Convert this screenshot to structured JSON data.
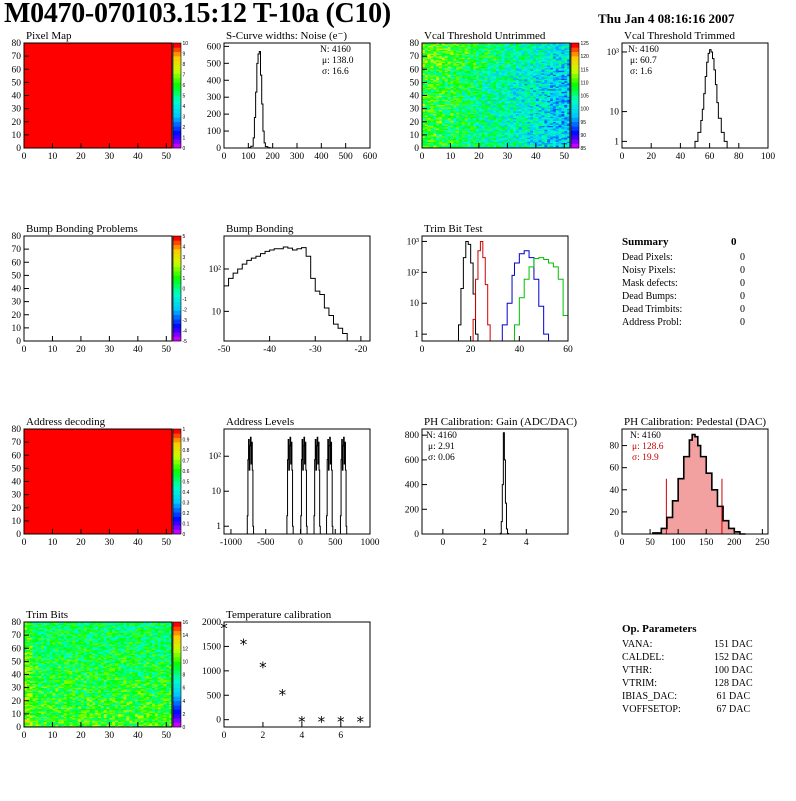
{
  "header": {
    "title": "M0470-070103.15:12 T-10a (C10)",
    "date": "Thu Jan  4 08:16:16 2007"
  },
  "colors": {
    "map_fill": "#ff0000",
    "hist_line": "#000000",
    "trim_black": "#000000",
    "trim_red": "#d00000",
    "trim_blue": "#0000cc",
    "trim_green": "#00c000",
    "pedestal_fill": "#f2a0a0",
    "pedestal_stat": "#cc0000"
  },
  "chart_data": [
    {
      "id": "pixel-map",
      "type": "heatmap",
      "title": "Pixel Map",
      "xlim": [
        0,
        52
      ],
      "ylim": [
        0,
        80
      ],
      "xticks": [
        "0",
        "10",
        "20",
        "30",
        "40",
        "50"
      ],
      "yticks": [
        "0",
        "10",
        "20",
        "30",
        "40",
        "50",
        "60",
        "70",
        "80"
      ],
      "fill": "uniform red",
      "zlim": [
        0,
        10
      ],
      "zticks": [
        "0",
        "1",
        "2",
        "3",
        "4",
        "5",
        "6",
        "7",
        "8",
        "9",
        "10"
      ]
    },
    {
      "id": "scurve-widths",
      "type": "histogram",
      "title": "S-Curve widths: Noise (e⁻)",
      "xlim": [
        0,
        600
      ],
      "ylim": [
        0,
        620
      ],
      "xticks": [
        "0",
        "100",
        "200",
        "300",
        "400",
        "500",
        "600"
      ],
      "yticks": [
        "0",
        "100",
        "200",
        "300",
        "400",
        "500",
        "600"
      ],
      "x": [
        100,
        110,
        120,
        125,
        130,
        135,
        140,
        145,
        150,
        155,
        160,
        165,
        170,
        180,
        190
      ],
      "y": [
        2,
        10,
        60,
        180,
        330,
        500,
        555,
        570,
        430,
        260,
        100,
        30,
        8,
        2,
        0
      ],
      "stats": {
        "N": "N: 4160",
        "mean": "μ: 138.0",
        "sigma": "σ: 16.6"
      }
    },
    {
      "id": "vcal-untrimmed",
      "type": "heatmap",
      "title": "Vcal Threshold Untrimmed",
      "xlim": [
        0,
        52
      ],
      "ylim": [
        0,
        80
      ],
      "xticks": [
        "0",
        "10",
        "20",
        "30",
        "40",
        "50"
      ],
      "yticks": [
        "0",
        "10",
        "20",
        "30",
        "40",
        "50",
        "60",
        "70",
        "80"
      ],
      "zlim": [
        80,
        128
      ],
      "zticks": [
        "85",
        "90",
        "95",
        "100",
        "105",
        "110",
        "115",
        "120",
        "125"
      ]
    },
    {
      "id": "vcal-trimmed",
      "type": "histogram",
      "title": "Vcal Threshold Trimmed",
      "logy": true,
      "xlim": [
        0,
        100
      ],
      "xticks": [
        "0",
        "20",
        "40",
        "60",
        "80",
        "100"
      ],
      "yticks": [
        "1",
        "10",
        "10³"
      ],
      "x": [
        50,
        52,
        54,
        55,
        56,
        57,
        58,
        59,
        60,
        61,
        62,
        63,
        64,
        65,
        66,
        68,
        70
      ],
      "y": [
        1,
        2,
        5,
        12,
        40,
        150,
        450,
        900,
        1200,
        1000,
        600,
        250,
        80,
        20,
        6,
        2,
        1
      ],
      "stats": {
        "N": "N: 4160",
        "mean": "μ: 60.7",
        "sigma": "σ:  1.6"
      }
    },
    {
      "id": "bump-bonding-problems",
      "type": "heatmap",
      "title": "Bump Bonding Problems",
      "xlim": [
        0,
        52
      ],
      "ylim": [
        0,
        80
      ],
      "xticks": [
        "0",
        "10",
        "20",
        "30",
        "40",
        "50"
      ],
      "yticks": [
        "0",
        "10",
        "20",
        "30",
        "40",
        "50",
        "60",
        "70",
        "80"
      ],
      "fill": "empty",
      "zlim": [
        -5,
        5
      ],
      "zticks": [
        "-5",
        "-4",
        "-3",
        "-2",
        "-1",
        "0",
        "1",
        "2",
        "3",
        "4",
        "5"
      ]
    },
    {
      "id": "bump-bonding",
      "type": "histogram",
      "title": "Bump Bonding",
      "logy": true,
      "xlim": [
        -50,
        -18
      ],
      "xticks": [
        "-50",
        "-40",
        "-30",
        "-20"
      ],
      "yticks": [
        "10",
        "10²"
      ],
      "x": [
        -50,
        -49,
        -48,
        -47,
        -46,
        -45,
        -44,
        -43,
        -42,
        -41,
        -40,
        -39,
        -38,
        -37,
        -36,
        -35,
        -34,
        -33,
        -32,
        -31,
        -30,
        -29,
        -28,
        -27,
        -26,
        -25,
        -24,
        -23
      ],
      "y": [
        40,
        60,
        80,
        100,
        130,
        160,
        180,
        200,
        230,
        260,
        280,
        300,
        300,
        330,
        310,
        280,
        300,
        320,
        200,
        60,
        30,
        25,
        12,
        8,
        5,
        4,
        3,
        2
      ],
      "stats": {}
    },
    {
      "id": "trim-bit-test",
      "type": "histogram",
      "title": "Trim Bit Test",
      "logy": true,
      "xlim": [
        0,
        60
      ],
      "xticks": [
        "0",
        "20",
        "40",
        "60"
      ],
      "yticks": [
        "1",
        "10",
        "10²",
        "10³"
      ],
      "series": [
        {
          "color": "black",
          "x": [
            15,
            16,
            17,
            18,
            19,
            20,
            21,
            22
          ],
          "y": [
            2,
            30,
            300,
            1000,
            800,
            200,
            20,
            1
          ]
        },
        {
          "color": "red",
          "x": [
            21,
            22,
            23,
            24,
            25,
            26,
            27
          ],
          "y": [
            3,
            60,
            500,
            1000,
            300,
            40,
            2
          ]
        },
        {
          "color": "blue",
          "x": [
            33,
            35,
            37,
            38,
            40,
            42,
            44,
            46,
            48,
            50
          ],
          "y": [
            2,
            10,
            80,
            200,
            400,
            500,
            300,
            60,
            8,
            1
          ]
        },
        {
          "color": "green",
          "x": [
            38,
            40,
            42,
            44,
            46,
            48,
            50,
            52,
            54,
            56,
            58
          ],
          "y": [
            2,
            15,
            60,
            150,
            280,
            300,
            260,
            200,
            150,
            60,
            4
          ]
        }
      ]
    },
    {
      "id": "address-decoding",
      "type": "heatmap",
      "title": "Address decoding",
      "xlim": [
        0,
        52
      ],
      "ylim": [
        0,
        80
      ],
      "xticks": [
        "0",
        "10",
        "20",
        "30",
        "40",
        "50"
      ],
      "yticks": [
        "0",
        "10",
        "20",
        "30",
        "40",
        "50",
        "60",
        "70",
        "80"
      ],
      "fill": "uniform red",
      "zlim": [
        0,
        1
      ],
      "zticks": [
        "0",
        "0.1",
        "0.2",
        "0.3",
        "0.4",
        "0.5",
        "0.6",
        "0.7",
        "0.8",
        "0.9",
        "1"
      ]
    },
    {
      "id": "address-levels",
      "type": "histogram",
      "title": "Address Levels",
      "logy": true,
      "xlim": [
        -1100,
        1000
      ],
      "xticks": [
        "-1000",
        "-500",
        "0",
        "500",
        "1000"
      ],
      "yticks": [
        "1",
        "10",
        "10²"
      ],
      "peaks": [
        -720,
        -150,
        50,
        240,
        420,
        620
      ],
      "peak_height": 350
    },
    {
      "id": "ph-gain",
      "type": "histogram",
      "title": "PH Calibration: Gain (ADC/DAC)",
      "xlim": [
        -1,
        6
      ],
      "ylim": [
        0,
        850
      ],
      "xticks": [
        "0",
        "2",
        "4"
      ],
      "yticks": [
        "0",
        "200",
        "400",
        "600",
        "800"
      ],
      "x": [
        2.75,
        2.8,
        2.85,
        2.9,
        2.95,
        3.0,
        3.05,
        3.1
      ],
      "y": [
        5,
        100,
        400,
        820,
        600,
        250,
        40,
        5
      ],
      "stats": {
        "N": "N: 4160",
        "mean": "μ: 2.91",
        "sigma": "σ: 0.06"
      }
    },
    {
      "id": "ph-pedestal",
      "type": "histogram",
      "title": "PH Calibration: Pedestal (DAC)",
      "xlim": [
        0,
        260
      ],
      "ylim": [
        0,
        95
      ],
      "xticks": [
        "0",
        "50",
        "100",
        "150",
        "200",
        "250"
      ],
      "yticks": [
        "0",
        "20",
        "40",
        "60",
        "80"
      ],
      "x": [
        55,
        70,
        80,
        90,
        100,
        110,
        120,
        125,
        130,
        135,
        140,
        150,
        160,
        170,
        180,
        190,
        200,
        210
      ],
      "y": [
        1,
        5,
        15,
        30,
        50,
        70,
        85,
        90,
        88,
        80,
        70,
        55,
        40,
        25,
        12,
        5,
        2,
        0
      ],
      "markers": [
        79,
        178
      ],
      "stats": {
        "N": "N: 4160",
        "mean": "μ: 128.6",
        "sigma": "σ: 19.9"
      }
    },
    {
      "id": "trim-bits",
      "type": "heatmap",
      "title": "Trim Bits",
      "xlim": [
        0,
        52
      ],
      "ylim": [
        0,
        80
      ],
      "xticks": [
        "0",
        "10",
        "20",
        "30",
        "40",
        "50"
      ],
      "yticks": [
        "0",
        "10",
        "20",
        "30",
        "40",
        "50",
        "60",
        "70",
        "80"
      ],
      "zlim": [
        0,
        16
      ],
      "zticks": [
        "0",
        "2",
        "4",
        "6",
        "8",
        "10",
        "12",
        "14",
        "16"
      ]
    },
    {
      "id": "temperature-calibration",
      "type": "scatter",
      "title": "Temperature calibration",
      "xlim": [
        0,
        7.5
      ],
      "ylim": [
        -150,
        2000
      ],
      "xticks": [
        "0",
        "2",
        "4",
        "6"
      ],
      "yticks": [
        "0",
        "500",
        "1000",
        "1500",
        "2000"
      ],
      "x": [
        0,
        1,
        2,
        3,
        4,
        5,
        6,
        7
      ],
      "y": [
        1870,
        1540,
        1070,
        510,
        -50,
        -50,
        -50,
        -50
      ]
    }
  ],
  "summary": {
    "title": "Summary",
    "total": "0",
    "rows": [
      {
        "label": "Dead Pixels:",
        "value": "0"
      },
      {
        "label": "Noisy Pixels:",
        "value": "0"
      },
      {
        "label": "Mask defects:",
        "value": "0"
      },
      {
        "label": "Dead Bumps:",
        "value": "0"
      },
      {
        "label": "Dead Trimbits:",
        "value": "0"
      },
      {
        "label": "Address Probl:",
        "value": "0"
      }
    ]
  },
  "op_params": {
    "title": "Op. Parameters",
    "rows": [
      {
        "label": "VANA:",
        "value": "151 DAC"
      },
      {
        "label": "CALDEL:",
        "value": "152 DAC"
      },
      {
        "label": "VTHR:",
        "value": "100 DAC"
      },
      {
        "label": "VTRIM:",
        "value": "128 DAC"
      },
      {
        "label": "IBIAS_DAC:",
        "value": " 61 DAC"
      },
      {
        "label": "VOFFSETOP:",
        "value": " 67 DAC"
      }
    ]
  }
}
